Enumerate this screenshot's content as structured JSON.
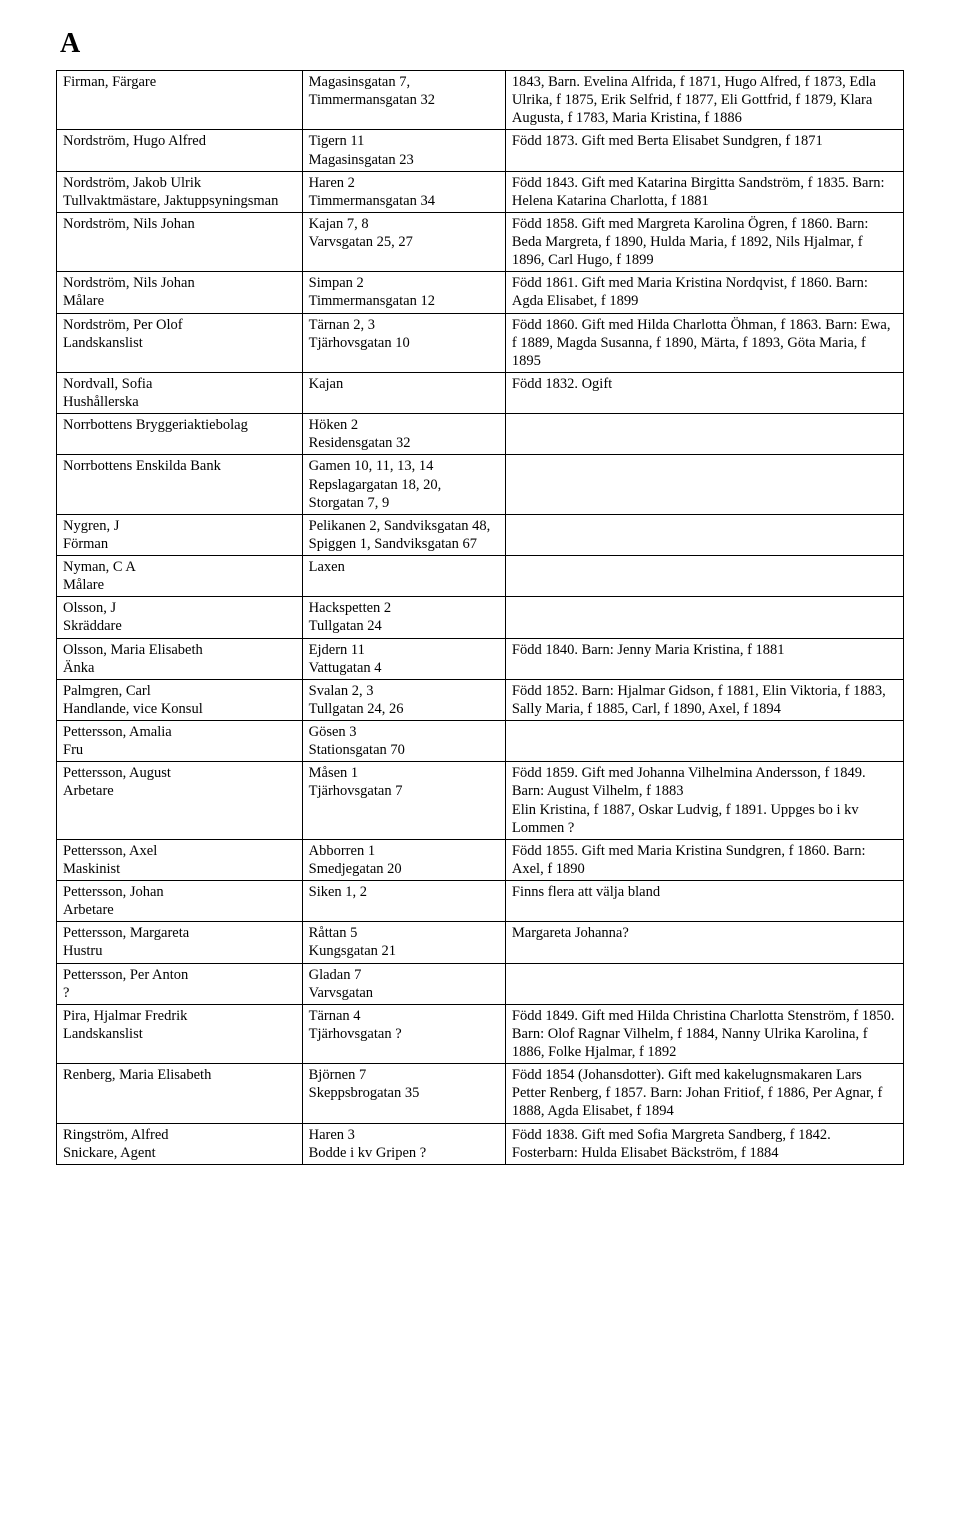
{
  "heading": "A",
  "rows": [
    {
      "c1": "Firman, Färgare",
      "c2": "Magasinsgatan 7, Timmermansgatan 32",
      "c3": "1843, Barn. Evelina Alfrida, f 1871, Hugo Alfred, f 1873, Edla Ulrika, f 1875, Erik Selfrid, f 1877, Eli Gottfrid, f 1879, Klara Augusta, f 1783, Maria Kristina, f 1886"
    },
    {
      "c1": "Nordström, Hugo Alfred",
      "c2": "Tigern 11\nMagasinsgatan 23",
      "c3": "Född 1873. Gift med Berta Elisabet Sundgren, f 1871"
    },
    {
      "c1": "Nordström, Jakob Ulrik\nTullvaktmästare, Jaktuppsyningsman",
      "c2": "Haren 2\nTimmermansgatan 34",
      "c3": "Född 1843. Gift med Katarina Birgitta Sandström, f 1835. Barn: Helena Katarina Charlotta, f 1881"
    },
    {
      "c1": "Nordström, Nils Johan",
      "c2": "Kajan 7, 8\nVarvsgatan 25, 27",
      "c3": "Född 1858. Gift med Margreta Karolina Ögren, f 1860. Barn: Beda Margreta, f 1890, Hulda Maria, f 1892, Nils Hjalmar, f 1896, Carl Hugo, f 1899"
    },
    {
      "c1": "Nordström, Nils Johan\nMålare",
      "c2": "Simpan 2\nTimmermansgatan 12",
      "c3": "Född 1861. Gift med Maria Kristina Nordqvist, f 1860. Barn: Agda Elisabet, f 1899"
    },
    {
      "c1": "Nordström, Per Olof\nLandskanslist",
      "c2": "Tärnan 2, 3\nTjärhovsgatan 10",
      "c3": "Född 1860. Gift med Hilda Charlotta Öhman, f 1863. Barn: Ewa, f 1889, Magda Susanna, f 1890, Märta, f 1893, Göta Maria, f 1895"
    },
    {
      "c1": "Nordvall, Sofia\nHushållerska",
      "c2": "Kajan",
      "c3": "Född 1832. Ogift"
    },
    {
      "c1": "Norrbottens Bryggeriaktiebolag",
      "c2": "Höken 2\nResidensgatan 32",
      "c3": ""
    },
    {
      "c1": "Norrbottens Enskilda Bank",
      "c2": "Gamen 10, 11, 13, 14\nRepslagargatan 18, 20,\nStorgatan 7, 9",
      "c3": ""
    },
    {
      "c1": "Nygren, J\nFörman",
      "c2": "Pelikanen 2, Sandviksgatan 48, Spiggen 1, Sandviksgatan 67",
      "c3": ""
    },
    {
      "c1": "Nyman, C A\nMålare",
      "c2": "Laxen",
      "c3": ""
    },
    {
      "c1": "Olsson, J\nSkräddare",
      "c2": "Hackspetten 2\nTullgatan 24",
      "c3": ""
    },
    {
      "c1": "Olsson, Maria Elisabeth\nÄnka",
      "c2": "Ejdern 11\nVattugatan 4",
      "c3": "Född 1840. Barn: Jenny Maria Kristina, f 1881"
    },
    {
      "c1": "Palmgren, Carl\nHandlande, vice Konsul",
      "c2": "Svalan 2, 3\nTullgatan 24, 26",
      "c3": "Född 1852. Barn: Hjalmar Gidson, f 1881, Elin Viktoria, f 1883, Sally Maria, f 1885, Carl, f 1890, Axel, f 1894"
    },
    {
      "c1": "Pettersson, Amalia\nFru",
      "c2": "Gösen 3\nStationsgatan 70",
      "c3": ""
    },
    {
      "c1": "Pettersson, August\nArbetare",
      "c2": "Måsen 1\nTjärhovsgatan 7",
      "c3": "Född 1859. Gift med Johanna Vilhelmina Andersson, f 1849. Barn: August Vilhelm, f 1883\nElin Kristina, f 1887, Oskar Ludvig, f 1891. Uppges bo i kv Lommen ?"
    },
    {
      "c1": "Pettersson, Axel\nMaskinist",
      "c2": "Abborren 1\nSmedjegatan 20",
      "c3": "Född 1855. Gift med Maria Kristina Sundgren, f 1860. Barn: Axel, f 1890"
    },
    {
      "c1": "Pettersson, Johan\nArbetare",
      "c2": "Siken 1, 2",
      "c3": "Finns flera att välja bland"
    },
    {
      "c1": "Pettersson, Margareta\nHustru",
      "c2": "Råttan 5\nKungsgatan 21",
      "c3": "Margareta Johanna?"
    },
    {
      "c1": "Pettersson, Per Anton\n?",
      "c2": "Gladan 7\nVarvsgatan",
      "c3": ""
    },
    {
      "c1": "Pira, Hjalmar Fredrik\nLandskanslist",
      "c2": "Tärnan 4\nTjärhovsgatan ?",
      "c3": "Född 1849. Gift med Hilda Christina Charlotta Stenström, f 1850. Barn: Olof Ragnar Vilhelm, f 1884, Nanny Ulrika Karolina, f 1886, Folke Hjalmar, f 1892"
    },
    {
      "c1": "Renberg, Maria Elisabeth",
      "c2": "Björnen 7\nSkeppsbrogatan 35",
      "c3": "Född 1854 (Johansdotter). Gift med kakelugnsmakaren Lars Petter Renberg, f 1857. Barn: Johan Fritiof, f 1886, Per Agnar, f 1888, Agda Elisabet, f 1894"
    },
    {
      "c1": "Ringström, Alfred\nSnickare, Agent",
      "c2": "Haren 3\nBodde i kv Gripen ?",
      "c3": "Född 1838. Gift med Sofia Margreta Sandberg, f 1842. Fosterbarn: Hulda Elisabet Bäckström, f 1884"
    }
  ]
}
